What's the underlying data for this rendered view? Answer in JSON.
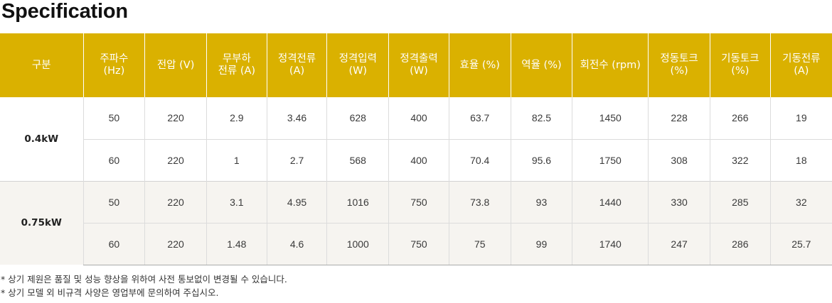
{
  "title": "Specification",
  "table": {
    "headers": [
      [
        "구분"
      ],
      [
        "주파수",
        "(Hz)"
      ],
      [
        "전압 (V)"
      ],
      [
        "무부하",
        "전류 (A)"
      ],
      [
        "정격전류",
        "(A)"
      ],
      [
        "정격입력",
        "(W)"
      ],
      [
        "정격출력",
        "(W)"
      ],
      [
        "효율 (%)"
      ],
      [
        "역율 (%)"
      ],
      [
        "회전수 (rpm)"
      ],
      [
        "정동토크",
        "(%)"
      ],
      [
        "기동토크",
        "(%)"
      ],
      [
        "기동전류",
        "(A)"
      ]
    ],
    "groups": [
      {
        "label": "0.4kW",
        "rows": [
          [
            "50",
            "220",
            "2.9",
            "3.46",
            "628",
            "400",
            "63.7",
            "82.5",
            "1450",
            "228",
            "266",
            "19"
          ],
          [
            "60",
            "220",
            "1",
            "2.7",
            "568",
            "400",
            "70.4",
            "95.6",
            "1750",
            "308",
            "322",
            "18"
          ]
        ]
      },
      {
        "label": "0.75kW",
        "rows": [
          [
            "50",
            "220",
            "3.1",
            "4.95",
            "1016",
            "750",
            "73.8",
            "93",
            "1440",
            "330",
            "285",
            "32"
          ],
          [
            "60",
            "220",
            "1.48",
            "4.6",
            "1000",
            "750",
            "75",
            "99",
            "1740",
            "247",
            "286",
            "25.7"
          ]
        ]
      }
    ]
  },
  "notes": [
    "* 상기 제원은 품질 및 성능 향상을 위하여 사전 통보없이 변경될 수 있습니다.",
    "* 상기 모델 외 비규격 사양은 영업부에 문의하여 주십시오."
  ],
  "colors": {
    "header_bg": "#dab100",
    "header_text": "#ffffff",
    "alt_row_bg": "#f6f4f0"
  }
}
